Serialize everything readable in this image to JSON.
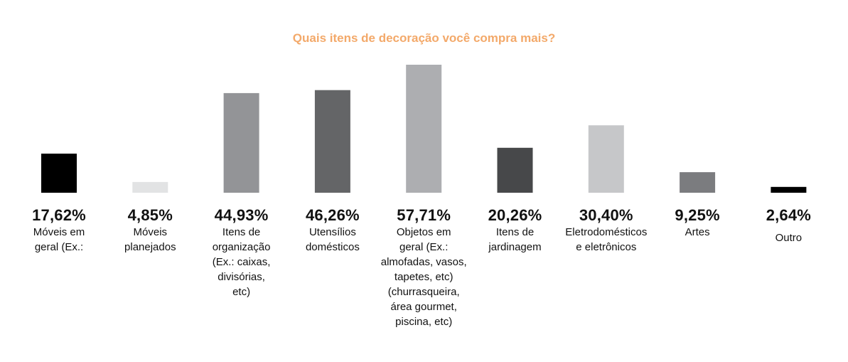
{
  "chart_data": {
    "type": "bar",
    "title": "Quais itens de decoração você compra mais?",
    "xlabel": "",
    "ylabel": "",
    "ylim": [
      0,
      57.71
    ],
    "grid": false,
    "categories": [
      "Móveis em\ngeral (Ex.:",
      "Móveis\nplanejados",
      "Itens de\norganização\n(Ex.: caixas,\ndivisórias,\netc)",
      "Utensílios\ndomésticos",
      "Objetos em\ngeral (Ex.:\nalmofadas, vasos,\ntapetes, etc)\n(churrasqueira,\nárea gourmet,\npiscina, etc)",
      "Itens de\njardinagem",
      "Eletrodomésticos\ne eletrônicos",
      "Artes",
      "Outro"
    ],
    "values": [
      17.62,
      4.85,
      44.93,
      46.26,
      57.71,
      20.26,
      30.4,
      9.25,
      2.64
    ],
    "value_labels": [
      "17,62%",
      "4,85%",
      "44,93%",
      "46,26%",
      "57,71%",
      "20,26%",
      "30,40%",
      "9,25%",
      "2,64%"
    ],
    "colors": [
      "#000000",
      "#e2e3e4",
      "#939497",
      "#646567",
      "#adaeb1",
      "#47484a",
      "#c6c7c9",
      "#7b7c7f",
      "#000000"
    ]
  }
}
